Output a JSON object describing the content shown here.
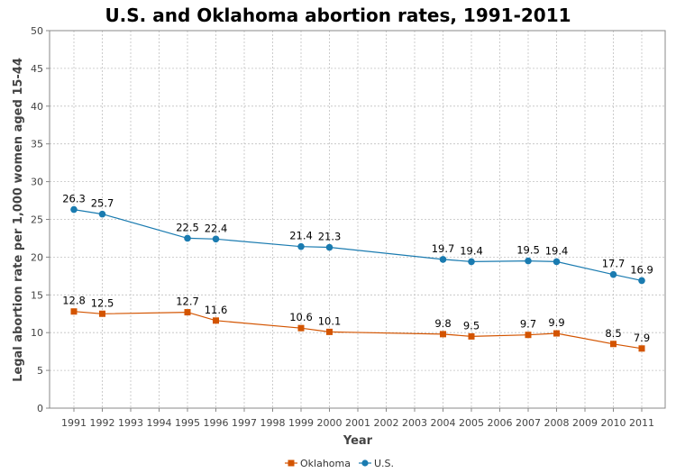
{
  "chart_data": {
    "type": "line",
    "title": "U.S. and Oklahoma abortion rates, 1991-2011",
    "xlabel": "Year",
    "ylabel": "Legal abortion rate per 1,000 women aged 15-44",
    "ylim": [
      0,
      50
    ],
    "yticks": [
      0,
      5,
      10,
      15,
      20,
      25,
      30,
      35,
      40,
      45,
      50
    ],
    "xticks": [
      "1991",
      "1992",
      "1993",
      "1994",
      "1995",
      "1996",
      "1997",
      "1998",
      "1999",
      "2000",
      "2001",
      "2002",
      "2003",
      "2004",
      "2005",
      "2006",
      "2007",
      "2008",
      "2009",
      "2010",
      "2011"
    ],
    "grid": true,
    "legend_position": "bottom",
    "series": [
      {
        "name": "Oklahoma",
        "color": "#d35400",
        "marker": "square",
        "x": [
          "1991",
          "1992",
          "1995",
          "1996",
          "1999",
          "2000",
          "2004",
          "2005",
          "2007",
          "2008",
          "2010",
          "2011"
        ],
        "values": [
          12.8,
          12.5,
          12.7,
          11.6,
          10.6,
          10.1,
          9.8,
          9.5,
          9.7,
          9.9,
          8.5,
          7.9
        ],
        "labels": [
          "12.8",
          "12.5",
          "12.7",
          "11.6",
          "10.6",
          "10.1",
          "9.8",
          "9.5",
          "9.7",
          "9.9",
          "8.5",
          "7.9"
        ]
      },
      {
        "name": "U.S.",
        "color": "#1a7bb0",
        "marker": "circle",
        "x": [
          "1991",
          "1992",
          "1995",
          "1996",
          "1999",
          "2000",
          "2004",
          "2005",
          "2007",
          "2008",
          "2010",
          "2011"
        ],
        "values": [
          26.3,
          25.7,
          22.5,
          22.4,
          21.4,
          21.3,
          19.7,
          19.4,
          19.5,
          19.4,
          17.7,
          16.9
        ],
        "labels": [
          "26.3",
          "25.7",
          "22.5",
          "22.4",
          "21.4",
          "21.3",
          "19.7",
          "19.4",
          "19.5",
          "19.4",
          "17.7",
          "16.9"
        ]
      }
    ]
  }
}
